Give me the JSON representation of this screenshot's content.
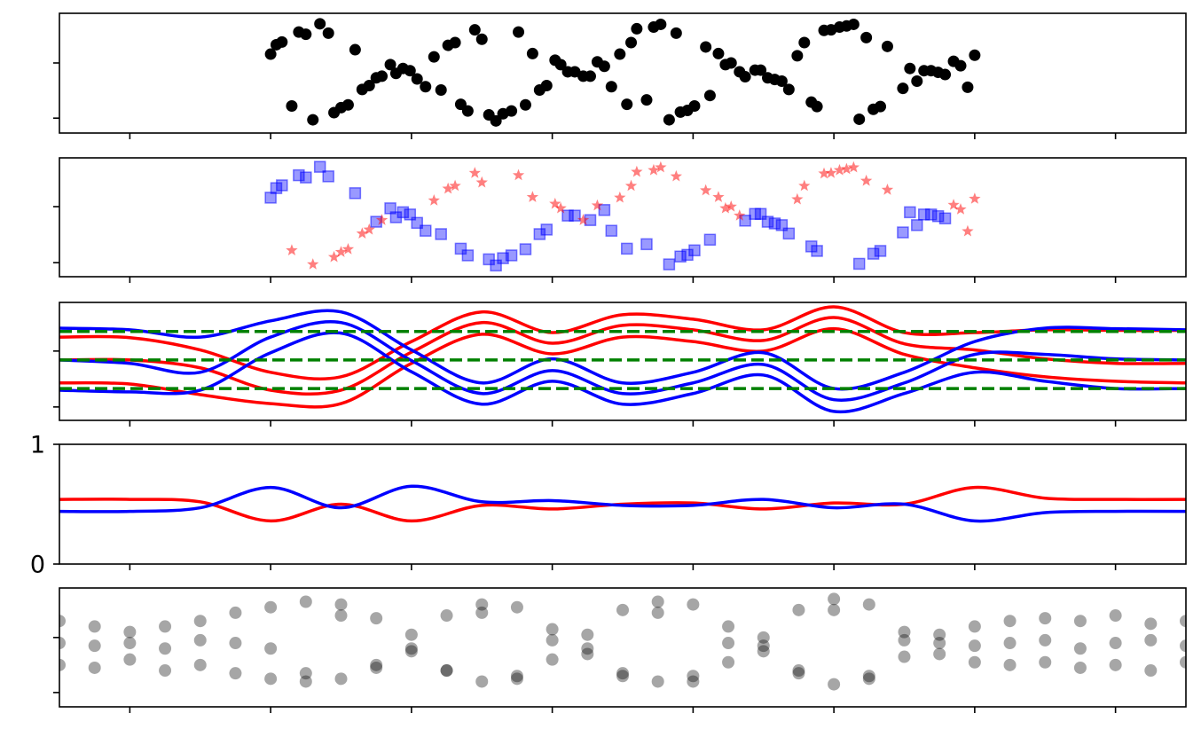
{
  "chart_data": [
    {
      "type": "scatter",
      "xlim": [
        -0.5,
        7.5
      ],
      "xticks": [
        0,
        1,
        2,
        3,
        4,
        5,
        6,
        7
      ],
      "ylim": [
        -0.27,
        1.9
      ],
      "yticks": [
        0,
        1
      ],
      "series": [
        {
          "color": "#000000",
          "marker": "circle",
          "x": [
            1.0,
            1.04,
            1.08,
            1.2,
            1.25,
            1.35,
            1.41,
            1.6,
            1.75,
            1.85,
            1.89,
            1.94,
            1.99,
            2.04,
            2.1,
            2.21,
            2.35,
            2.4,
            2.55,
            2.6,
            2.65,
            2.71,
            2.81,
            2.91,
            2.96,
            3.11,
            3.16,
            3.27,
            3.37,
            3.42,
            3.53,
            3.67,
            3.83,
            3.91,
            3.96,
            4.01,
            4.12,
            4.37,
            4.44,
            4.48,
            4.53,
            4.58,
            4.63,
            4.68,
            4.84,
            4.88,
            5.18,
            5.28,
            5.33,
            5.49,
            5.54,
            5.59,
            5.64,
            5.69,
            5.74,
            5.79,
            1.15,
            1.3,
            1.45,
            1.5,
            1.55,
            1.65,
            1.7,
            1.79,
            2.16,
            2.26,
            2.31,
            2.45,
            2.5,
            2.76,
            2.86,
            3.02,
            3.06,
            3.22,
            3.32,
            3.48,
            3.56,
            3.6,
            3.72,
            3.77,
            3.88,
            4.09,
            4.18,
            4.23,
            4.27,
            4.33,
            4.74,
            4.79,
            4.93,
            4.98,
            5.04,
            5.09,
            5.14,
            5.23,
            5.38,
            5.85,
            5.9,
            5.95,
            6.0
          ],
          "values": [
            1.16,
            1.33,
            1.38,
            1.56,
            1.52,
            1.71,
            1.54,
            1.24,
            0.73,
            0.97,
            0.81,
            0.9,
            0.86,
            0.71,
            0.57,
            0.51,
            0.25,
            0.13,
            0.06,
            -0.05,
            0.08,
            0.13,
            0.24,
            0.51,
            0.59,
            0.84,
            0.84,
            0.76,
            0.94,
            0.57,
            0.25,
            0.33,
            -0.03,
            0.11,
            0.14,
            0.22,
            0.41,
            0.75,
            0.87,
            0.87,
            0.73,
            0.7,
            0.67,
            0.52,
            0.29,
            0.21,
            -0.02,
            0.16,
            0.21,
            0.54,
            0.9,
            0.67,
            0.86,
            0.86,
            0.83,
            0.79,
            0.22,
            -0.03,
            0.1,
            0.19,
            0.24,
            0.52,
            0.59,
            0.76,
            1.11,
            1.32,
            1.37,
            1.6,
            1.43,
            1.56,
            1.17,
            1.05,
            0.97,
            0.76,
            1.02,
            1.16,
            1.37,
            1.62,
            1.65,
            1.7,
            1.54,
            1.29,
            1.17,
            0.97,
            1.0,
            0.84,
            1.13,
            1.37,
            1.59,
            1.6,
            1.65,
            1.67,
            1.7,
            1.46,
            1.3,
            1.03,
            0.95,
            0.56,
            1.14
          ]
        }
      ]
    },
    {
      "type": "scatter",
      "xlim": [
        -0.5,
        7.5
      ],
      "xticks": [
        0,
        1,
        2,
        3,
        4,
        5,
        6,
        7
      ],
      "ylim": [
        -0.25,
        1.87
      ],
      "yticks": [
        0,
        1
      ],
      "series": [
        {
          "color": "#0000ff",
          "marker": "square",
          "x": [
            1.0,
            1.04,
            1.08,
            1.2,
            1.25,
            1.35,
            1.41,
            1.6,
            1.75,
            1.85,
            1.89,
            1.94,
            1.99,
            2.04,
            2.1,
            2.21,
            2.35,
            2.4,
            2.55,
            2.6,
            2.65,
            2.71,
            2.81,
            2.91,
            2.96,
            3.11,
            3.16,
            3.27,
            3.37,
            3.42,
            3.53,
            3.67,
            3.83,
            3.91,
            3.96,
            4.01,
            4.12,
            4.37,
            4.44,
            4.48,
            4.53,
            4.58,
            4.63,
            4.68,
            4.84,
            4.88,
            5.18,
            5.28,
            5.33,
            5.49,
            5.54,
            5.59,
            5.64,
            5.69,
            5.74,
            5.79
          ],
          "values": [
            1.16,
            1.33,
            1.38,
            1.56,
            1.52,
            1.71,
            1.54,
            1.24,
            0.73,
            0.97,
            0.81,
            0.9,
            0.86,
            0.71,
            0.57,
            0.51,
            0.25,
            0.13,
            0.06,
            -0.05,
            0.08,
            0.13,
            0.24,
            0.51,
            0.59,
            0.84,
            0.84,
            0.76,
            0.94,
            0.57,
            0.25,
            0.33,
            -0.03,
            0.11,
            0.14,
            0.22,
            0.41,
            0.75,
            0.87,
            0.87,
            0.73,
            0.7,
            0.67,
            0.52,
            0.29,
            0.21,
            -0.02,
            0.16,
            0.21,
            0.54,
            0.9,
            0.67,
            0.86,
            0.86,
            0.83,
            0.79
          ]
        },
        {
          "color": "#ff0000",
          "marker": "star",
          "x": [
            1.15,
            1.3,
            1.45,
            1.5,
            1.55,
            1.65,
            1.7,
            1.79,
            2.16,
            2.26,
            2.31,
            2.45,
            2.5,
            2.76,
            2.86,
            3.02,
            3.06,
            3.22,
            3.32,
            3.48,
            3.56,
            3.6,
            3.72,
            3.77,
            3.88,
            4.09,
            4.18,
            4.23,
            4.27,
            4.33,
            4.74,
            4.79,
            4.93,
            4.98,
            5.04,
            5.09,
            5.14,
            5.23,
            5.38,
            5.85,
            5.9,
            5.95,
            6.0
          ],
          "values": [
            0.22,
            -0.03,
            0.1,
            0.19,
            0.24,
            0.52,
            0.59,
            0.76,
            1.11,
            1.32,
            1.37,
            1.6,
            1.43,
            1.56,
            1.17,
            1.05,
            0.97,
            0.76,
            1.02,
            1.16,
            1.37,
            1.62,
            1.65,
            1.7,
            1.54,
            1.29,
            1.17,
            0.97,
            1.0,
            0.84,
            1.13,
            1.37,
            1.59,
            1.6,
            1.65,
            1.67,
            1.7,
            1.46,
            1.3,
            1.03,
            0.95,
            0.56,
            1.14
          ]
        }
      ]
    },
    {
      "type": "line",
      "xlim": [
        -0.5,
        7.5
      ],
      "xticks": [
        0,
        1,
        2,
        3,
        4,
        5,
        6,
        7
      ],
      "ylim": [
        -0.24,
        1.87
      ],
      "yticks": [
        0,
        1
      ],
      "x": [
        -0.5,
        0,
        0.5,
        1,
        1.5,
        2,
        2.5,
        3,
        3.5,
        4,
        4.5,
        5,
        5.5,
        6,
        6.5,
        7,
        7.5
      ],
      "series": [
        {
          "color": "#ff0000",
          "values": [
            1.25,
            1.24,
            1.02,
            0.62,
            0.54,
            1.17,
            1.7,
            1.33,
            1.65,
            1.57,
            1.38,
            1.79,
            1.33,
            1.33,
            1.38,
            1.37,
            1.37
          ]
        },
        {
          "color": "#ff0000",
          "values": [
            0.84,
            0.84,
            0.7,
            0.3,
            0.3,
            0.98,
            1.51,
            1.14,
            1.46,
            1.38,
            1.19,
            1.6,
            1.13,
            1.02,
            0.86,
            0.78,
            0.78
          ]
        },
        {
          "color": "#ff0000",
          "values": [
            0.43,
            0.41,
            0.22,
            0.06,
            0.06,
            0.78,
            1.3,
            0.95,
            1.25,
            1.17,
            1.0,
            1.4,
            0.94,
            0.7,
            0.54,
            0.46,
            0.43
          ]
        },
        {
          "color": "#0000ff",
          "values": [
            1.41,
            1.38,
            1.25,
            1.54,
            1.7,
            1.02,
            0.43,
            0.86,
            0.43,
            0.62,
            0.97,
            0.33,
            0.62,
            1.17,
            1.41,
            1.4,
            1.38
          ]
        },
        {
          "color": "#0000ff",
          "values": [
            0.84,
            0.78,
            0.62,
            1.25,
            1.51,
            0.83,
            0.24,
            0.65,
            0.24,
            0.43,
            0.76,
            0.13,
            0.43,
            0.94,
            0.94,
            0.86,
            0.84
          ]
        },
        {
          "color": "#0000ff",
          "values": [
            0.3,
            0.27,
            0.3,
            0.97,
            1.32,
            0.63,
            0.05,
            0.46,
            0.05,
            0.24,
            0.57,
            -0.08,
            0.24,
            0.62,
            0.46,
            0.33,
            0.33
          ]
        }
      ],
      "hlines": {
        "values": [
          1.35,
          0.84,
          0.33
        ],
        "color": "#008000",
        "linestyle": "dashed"
      }
    },
    {
      "type": "line",
      "xlim": [
        -0.5,
        7.5
      ],
      "xticks": [
        0,
        1,
        2,
        3,
        4,
        5,
        6,
        7
      ],
      "ylim": [
        0,
        1
      ],
      "yticks": [
        0,
        1
      ],
      "ytick_labels": true,
      "x": [
        -0.5,
        0,
        0.5,
        1,
        1.5,
        2,
        2.5,
        3,
        3.5,
        4,
        4.5,
        5,
        5.5,
        6,
        6.5,
        7,
        7.5
      ],
      "series": [
        {
          "color": "#ff0000",
          "values": [
            0.54,
            0.54,
            0.52,
            0.36,
            0.5,
            0.36,
            0.49,
            0.46,
            0.5,
            0.51,
            0.46,
            0.51,
            0.5,
            0.64,
            0.55,
            0.54,
            0.54
          ]
        },
        {
          "color": "#0000ff",
          "values": [
            0.44,
            0.44,
            0.47,
            0.64,
            0.47,
            0.65,
            0.52,
            0.53,
            0.49,
            0.49,
            0.54,
            0.47,
            0.5,
            0.36,
            0.43,
            0.44,
            0.44
          ]
        }
      ]
    },
    {
      "type": "scatter",
      "xlim": [
        -0.5,
        7.5
      ],
      "xticks": [
        0,
        1,
        2,
        3,
        4,
        5,
        6,
        7
      ],
      "ylim": [
        -0.26,
        1.9
      ],
      "yticks": [
        0,
        1
      ],
      "series": [
        {
          "color": "#000000",
          "marker": "circle",
          "alpha": 0.35,
          "x": [
            -0.5,
            -0.5,
            -0.5,
            -0.25,
            -0.25,
            -0.25,
            0,
            0,
            0,
            0.25,
            0.25,
            0.25,
            0.5,
            0.5,
            0.5,
            0.75,
            0.75,
            0.75,
            1,
            1,
            1,
            1.25,
            1.25,
            1.25,
            1.5,
            1.5,
            1.5,
            1.75,
            1.75,
            1.75,
            2,
            2,
            2,
            2.25,
            2.25,
            2.25,
            2.5,
            2.5,
            2.5,
            2.75,
            2.75,
            2.75,
            3,
            3,
            3,
            3.25,
            3.25,
            3.25,
            3.5,
            3.5,
            3.5,
            3.75,
            3.75,
            3.75,
            4,
            4,
            4,
            4.25,
            4.25,
            4.25,
            4.5,
            4.5,
            4.5,
            4.75,
            4.75,
            4.75,
            5,
            5,
            5,
            5.25,
            5.25,
            5.25,
            5.5,
            5.5,
            5.5,
            5.75,
            5.75,
            5.75,
            6,
            6,
            6,
            6.25,
            6.25,
            6.25,
            6.5,
            6.5,
            6.5,
            6.75,
            6.75,
            6.75,
            7,
            7,
            7,
            7.25,
            7.25,
            7.25,
            7.5,
            7.5,
            7.5
          ],
          "values": [
            1.3,
            0.9,
            0.5,
            1.2,
            0.85,
            0.45,
            1.1,
            0.9,
            0.6,
            1.2,
            0.8,
            0.4,
            1.3,
            0.95,
            0.5,
            1.45,
            0.9,
            0.35,
            1.55,
            0.8,
            0.25,
            1.65,
            0.35,
            0.2,
            1.6,
            1.4,
            0.25,
            1.35,
            0.5,
            0.45,
            1.05,
            0.8,
            0.75,
            1.4,
            0.4,
            0.4,
            1.6,
            1.45,
            0.2,
            1.55,
            0.3,
            0.25,
            1.15,
            0.95,
            0.6,
            1.05,
            0.8,
            0.7,
            1.5,
            0.35,
            0.3,
            1.65,
            1.45,
            0.2,
            1.6,
            0.3,
            0.2,
            1.2,
            0.9,
            0.55,
            1.0,
            0.85,
            0.75,
            1.5,
            0.4,
            0.35,
            1.7,
            1.5,
            0.15,
            1.6,
            0.3,
            0.25,
            1.1,
            0.95,
            0.65,
            1.05,
            0.9,
            0.7,
            1.2,
            0.85,
            0.55,
            1.3,
            0.9,
            0.5,
            1.35,
            0.95,
            0.55,
            1.3,
            0.8,
            0.45,
            1.4,
            0.9,
            0.5,
            1.25,
            0.95,
            0.4,
            1.3,
            0.85,
            0.55
          ]
        }
      ]
    }
  ]
}
